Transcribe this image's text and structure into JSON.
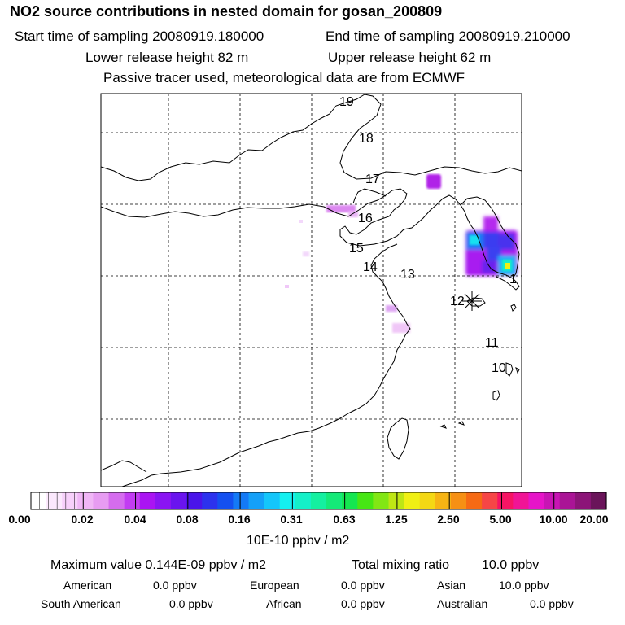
{
  "header": {
    "title": "NO2 source contributions in nested domain for gosan_200809",
    "start_time": "Start time of sampling 20080919.180000",
    "end_time": "End time of sampling 20080919.210000",
    "lower_release": "Lower release height   82 m",
    "upper_release": "Upper release height   62 m",
    "tracer_note": "Passive tracer used, meteorological data are from ECMWF"
  },
  "map": {
    "trajectory_labels": [
      "19",
      "18",
      "17",
      "16",
      "15",
      "14",
      "13",
      "12",
      "11",
      "10",
      "1"
    ],
    "receptor_symbol": "asterisk"
  },
  "colorbar": {
    "colors": [
      "#ffffff",
      "#fbe8fd",
      "#f7d0fb",
      "#f0b6f6",
      "#e79cf2",
      "#d56cee",
      "#c23cf2",
      "#aa14f2",
      "#8a14f2",
      "#6a14ee",
      "#4a14ea",
      "#2c32ee",
      "#1450f0",
      "#147af6",
      "#14a0f8",
      "#14c6fa",
      "#14f0f0",
      "#14f0c8",
      "#14f0a0",
      "#14ea78",
      "#14e650",
      "#46e614",
      "#82e614",
      "#bee614",
      "#f0f014",
      "#f4d814",
      "#f6b414",
      "#f69014",
      "#f66a14",
      "#f64646",
      "#f61464",
      "#f01496",
      "#e614c8",
      "#c814b4",
      "#aa1496",
      "#8c1478",
      "#6a145a"
    ],
    "tick_labels": [
      "0.00",
      "0.02",
      "0.04",
      "0.08",
      "0.16",
      "0.31",
      "0.63",
      "1.25",
      "2.50",
      "5.00",
      "10.00",
      "20.00"
    ],
    "units": "10E-10 ppbv / m2"
  },
  "summary": {
    "maximum": "Maximum value  0.144E-09 ppbv / m2",
    "total_label": "Total mixing ratio",
    "total_value": "10.0 ppbv",
    "regions": [
      {
        "name": "American",
        "value": "0.0 ppbv"
      },
      {
        "name": "European",
        "value": "0.0 ppbv"
      },
      {
        "name": "Asian",
        "value": "10.0 ppbv"
      },
      {
        "name": "South American",
        "value": "0.0 ppbv"
      },
      {
        "name": "African",
        "value": "0.0 ppbv"
      },
      {
        "name": "Australian",
        "value": "0.0 ppbv"
      }
    ]
  }
}
